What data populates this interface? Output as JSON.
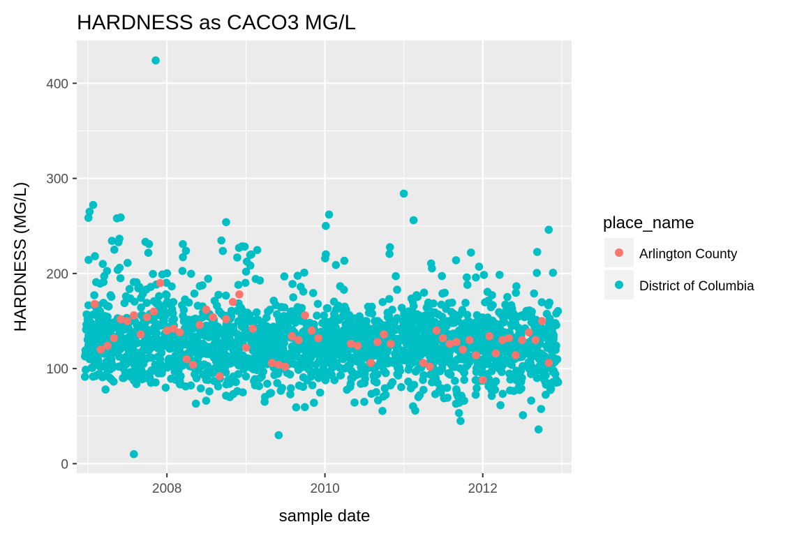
{
  "chart_data": {
    "type": "scatter",
    "title": "HARDNESS as CACO3 MG/L",
    "xlabel": "sample date",
    "ylabel": "HARDNESS (MG/L)",
    "x_ticks": [
      "2008",
      "2010",
      "2012"
    ],
    "y_ticks": [
      "0",
      "100",
      "200",
      "300",
      "400"
    ],
    "xlim": [
      "2006-11-10",
      "2013-02-15"
    ],
    "ylim": [
      -10,
      445
    ],
    "grid": true,
    "legend": {
      "title": "place_name",
      "position": "right",
      "entries": [
        "Arlington County",
        "District of Columbia"
      ]
    },
    "series": [
      {
        "name": "Arlington County",
        "color": "#F8766D",
        "points": [
          [
            "2007-02-01",
            168
          ],
          [
            "2007-03-01",
            120
          ],
          [
            "2007-04-01",
            124
          ],
          [
            "2007-05-01",
            132
          ],
          [
            "2007-06-01",
            152
          ],
          [
            "2007-07-01",
            150
          ],
          [
            "2007-08-01",
            156
          ],
          [
            "2007-09-01",
            136
          ],
          [
            "2007-10-01",
            154
          ],
          [
            "2007-11-01",
            160
          ],
          [
            "2007-12-01",
            190
          ],
          [
            "2008-01-01",
            140
          ],
          [
            "2008-02-01",
            142
          ],
          [
            "2008-03-01",
            138
          ],
          [
            "2008-04-01",
            110
          ],
          [
            "2008-05-01",
            104
          ],
          [
            "2008-06-01",
            146
          ],
          [
            "2008-07-01",
            162
          ],
          [
            "2008-08-01",
            154
          ],
          [
            "2008-09-01",
            92
          ],
          [
            "2008-10-01",
            152
          ],
          [
            "2008-11-01",
            170
          ],
          [
            "2008-12-01",
            178
          ],
          [
            "2009-01-01",
            122
          ],
          [
            "2009-02-01",
            142
          ],
          [
            "2009-05-01",
            106
          ],
          [
            "2009-06-01",
            104
          ],
          [
            "2009-07-01",
            102
          ],
          [
            "2009-08-01",
            134
          ],
          [
            "2009-09-01",
            130
          ],
          [
            "2009-10-01",
            156
          ],
          [
            "2009-11-01",
            140
          ],
          [
            "2009-12-01",
            132
          ],
          [
            "2010-05-01",
            126
          ],
          [
            "2010-06-01",
            124
          ],
          [
            "2010-08-01",
            106
          ],
          [
            "2010-09-01",
            128
          ],
          [
            "2010-10-01",
            136
          ],
          [
            "2010-11-01",
            126
          ],
          [
            "2011-04-01",
            106
          ],
          [
            "2011-05-01",
            102
          ],
          [
            "2011-06-01",
            140
          ],
          [
            "2011-07-01",
            132
          ],
          [
            "2011-08-01",
            126
          ],
          [
            "2011-09-01",
            128
          ],
          [
            "2011-10-01",
            120
          ],
          [
            "2011-11-01",
            130
          ],
          [
            "2011-12-01",
            114
          ],
          [
            "2012-01-01",
            88
          ],
          [
            "2012-02-01",
            134
          ],
          [
            "2012-03-01",
            116
          ],
          [
            "2012-04-01",
            130
          ],
          [
            "2012-05-01",
            132
          ],
          [
            "2012-06-01",
            114
          ],
          [
            "2012-07-01",
            130
          ],
          [
            "2012-08-01",
            138
          ],
          [
            "2012-09-01",
            130
          ],
          [
            "2012-10-01",
            150
          ],
          [
            "2012-11-01",
            106
          ]
        ]
      },
      {
        "name": "District of Columbia",
        "color": "#00BFC4",
        "outliers": [
          [
            "2007-11-10",
            424
          ],
          [
            "2007-01-25",
            272
          ],
          [
            "2007-05-15",
            258
          ],
          [
            "2007-06-01",
            259
          ],
          [
            "2011-01-01",
            284
          ],
          [
            "2011-02-15",
            256
          ],
          [
            "2010-01-20",
            262
          ],
          [
            "2010-01-05",
            250
          ],
          [
            "2008-10-01",
            254
          ],
          [
            "2007-08-01",
            10
          ],
          [
            "2009-06-01",
            30
          ],
          [
            "2012-09-15",
            36
          ],
          [
            "2012-11-01",
            246
          ]
        ],
        "clusters": [
          [
            "2007-01-01",
            70,
            272
          ],
          [
            "2007-02-01",
            70,
            236
          ],
          [
            "2007-03-01",
            75,
            230
          ],
          [
            "2007-04-01",
            78,
            205
          ],
          [
            "2007-05-01",
            80,
            257
          ],
          [
            "2007-06-01",
            90,
            259
          ],
          [
            "2007-07-01",
            95,
            230
          ],
          [
            "2007-08-01",
            76,
            205
          ],
          [
            "2007-09-01",
            85,
            215
          ],
          [
            "2007-10-01",
            90,
            238
          ],
          [
            "2007-11-01",
            85,
            232
          ],
          [
            "2007-12-01",
            95,
            205
          ],
          [
            "2008-01-01",
            80,
            210
          ],
          [
            "2008-02-01",
            85,
            205
          ],
          [
            "2008-03-01",
            78,
            232
          ],
          [
            "2008-04-01",
            65,
            225
          ],
          [
            "2008-05-01",
            55,
            205
          ],
          [
            "2008-06-01",
            60,
            200
          ],
          [
            "2008-07-01",
            62,
            247
          ],
          [
            "2008-08-01",
            58,
            242
          ],
          [
            "2008-09-01",
            55,
            242
          ],
          [
            "2008-10-01",
            60,
            240
          ],
          [
            "2008-11-01",
            70,
            222
          ],
          [
            "2008-12-01",
            68,
            233
          ],
          [
            "2009-01-01",
            75,
            235
          ],
          [
            "2009-02-01",
            78,
            225
          ],
          [
            "2009-03-01",
            62,
            245
          ],
          [
            "2009-04-01",
            60,
            160
          ],
          [
            "2009-05-01",
            62,
            195
          ],
          [
            "2009-06-01",
            65,
            200
          ],
          [
            "2009-07-01",
            68,
            210
          ],
          [
            "2009-08-01",
            60,
            214
          ],
          [
            "2009-09-01",
            58,
            210
          ],
          [
            "2009-10-01",
            48,
            212
          ],
          [
            "2009-11-01",
            55,
            180
          ],
          [
            "2009-12-01",
            60,
            185
          ],
          [
            "2010-01-01",
            68,
            232
          ],
          [
            "2010-02-01",
            70,
            195
          ],
          [
            "2010-03-01",
            48,
            216
          ],
          [
            "2010-04-01",
            55,
            214
          ],
          [
            "2010-05-01",
            62,
            186
          ],
          [
            "2010-06-01",
            60,
            155
          ],
          [
            "2010-07-01",
            65,
            150
          ],
          [
            "2010-08-01",
            68,
            165
          ],
          [
            "2010-09-01",
            55,
            150
          ],
          [
            "2010-10-01",
            46,
            206
          ],
          [
            "2010-11-01",
            58,
            232
          ],
          [
            "2010-12-01",
            62,
            225
          ],
          [
            "2011-01-01",
            65,
            180
          ],
          [
            "2011-02-01",
            60,
            175
          ],
          [
            "2011-03-01",
            52,
            222
          ],
          [
            "2011-04-01",
            58,
            218
          ],
          [
            "2011-05-01",
            55,
            220
          ],
          [
            "2011-06-01",
            50,
            186
          ],
          [
            "2011-07-01",
            48,
            214
          ],
          [
            "2011-08-01",
            35,
            190
          ],
          [
            "2011-09-01",
            40,
            234
          ],
          [
            "2011-10-01",
            42,
            204
          ],
          [
            "2011-11-01",
            55,
            226
          ],
          [
            "2011-12-01",
            58,
            214
          ],
          [
            "2012-01-01",
            52,
            208
          ],
          [
            "2012-02-01",
            60,
            220
          ],
          [
            "2012-03-01",
            62,
            218
          ],
          [
            "2012-04-01",
            58,
            218
          ],
          [
            "2012-05-01",
            60,
            180
          ],
          [
            "2012-06-01",
            55,
            214
          ],
          [
            "2012-07-01",
            48,
            206
          ],
          [
            "2012-08-01",
            50,
            170
          ],
          [
            "2012-09-01",
            52,
            230
          ],
          [
            "2012-10-01",
            55,
            188
          ],
          [
            "2012-11-01",
            70,
            172
          ],
          [
            "2012-12-01",
            80,
            218
          ]
        ]
      }
    ]
  }
}
